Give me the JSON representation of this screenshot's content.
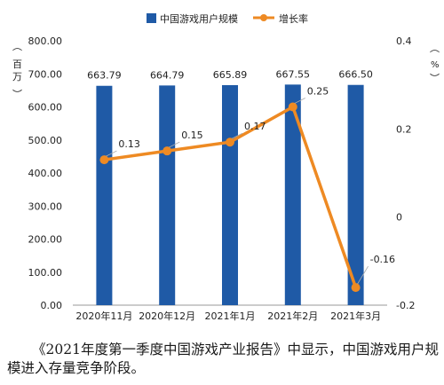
{
  "chart_data": {
    "type": "bar",
    "categories": [
      "2020年11月",
      "2020年12月",
      "2021年1月",
      "2021年2月",
      "2021年3月"
    ],
    "series": [
      {
        "name": "中国游戏用户规模",
        "type": "bar",
        "axis": "left",
        "values": [
          663.79,
          664.79,
          665.89,
          667.55,
          666.5
        ],
        "labels": [
          "663.79",
          "664.79",
          "665.89",
          "667.55",
          "666.50"
        ],
        "color": "#1f5aa6"
      },
      {
        "name": "增长率",
        "type": "line",
        "axis": "right",
        "values": [
          0.13,
          0.15,
          0.17,
          0.25,
          -0.16
        ],
        "labels": [
          "0.13",
          "0.15",
          "0.17",
          "0.25",
          "-0.16"
        ],
        "color": "#ee8a23"
      }
    ],
    "y_left": {
      "label": "百万",
      "ylim": [
        0,
        800
      ],
      "ticks": [
        "0.00",
        "100.00",
        "200.00",
        "300.00",
        "400.00",
        "500.00",
        "600.00",
        "700.00",
        "800.00"
      ]
    },
    "y_right": {
      "label": "%",
      "ylim": [
        -0.2,
        0.4
      ],
      "ticks": [
        "0.4",
        "0.2",
        "0",
        "-0.2"
      ],
      "tick_values": [
        0.4,
        0.2,
        0,
        -0.2
      ]
    },
    "legend_position": "top-center",
    "grid": false
  },
  "caption": "《2021年度第一季度中国游戏产业报告》中显示，中国游戏用户规模进入存量竞争阶段。"
}
